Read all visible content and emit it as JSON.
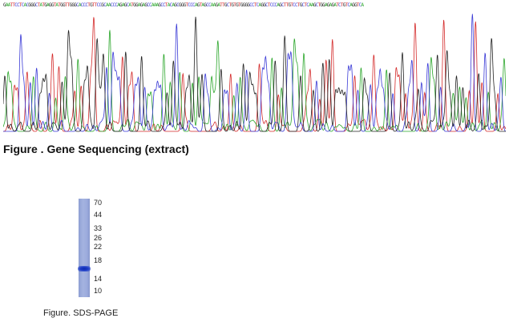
{
  "sequencing": {
    "sequence": "GAATTCCTCACGGGCTATGAGGTATGGTTGGGCACCCTGTTCCGCAACCCAGAGCATGGAGAGCCAAAGCCTACAGCGGGTCCCAGTAGCCAAGATTGCTGTGTGGGGCCTCAGGCTCCCAGCTTGTCCTGCTCAAGCTGGAGAGATCTGTCAGGTCA",
    "colors": {
      "A": "#2aa62a",
      "C": "#3a3ad6",
      "G": "#222222",
      "T": "#d42a2a"
    },
    "caption": "Figure . Gene Sequencing (extract)"
  },
  "gel": {
    "markers": [
      "70",
      "44",
      "33",
      "26",
      "22",
      "18",
      "14",
      "10"
    ],
    "band_position": 0.68,
    "caption": "Figure. SDS-PAGE"
  }
}
